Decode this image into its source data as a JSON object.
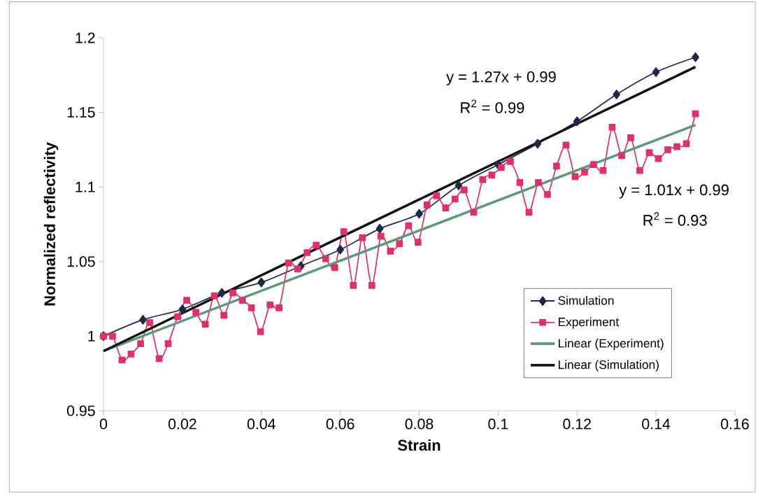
{
  "chart_data": {
    "type": "line",
    "xlabel": "Strain",
    "ylabel": "Normalized reflectivity",
    "xlim": [
      0,
      0.16
    ],
    "ylim": [
      0.95,
      1.2
    ],
    "xticks": [
      0,
      0.02,
      0.04,
      0.06,
      0.08,
      0.1,
      0.12,
      0.14,
      0.16
    ],
    "yticks": [
      0.95,
      1,
      1.05,
      1.1,
      1.15,
      1.2
    ],
    "legend": "bottom right",
    "series": [
      {
        "name": "Simulation",
        "color": "#1c2a4a",
        "marker": "diamond",
        "x": [
          0,
          0.01,
          0.02,
          0.03,
          0.04,
          0.05,
          0.06,
          0.07,
          0.08,
          0.09,
          0.1,
          0.11,
          0.12,
          0.13,
          0.14,
          0.15
        ],
        "values": [
          1.0,
          1.011,
          1.018,
          1.029,
          1.036,
          1.047,
          1.058,
          1.072,
          1.082,
          1.101,
          1.115,
          1.129,
          1.144,
          1.162,
          1.177,
          1.187
        ]
      },
      {
        "name": "Experiment",
        "color": "#e0306a",
        "marker": "square",
        "x": [
          0,
          0.0023,
          0.0047,
          0.007,
          0.0094,
          0.0117,
          0.0141,
          0.0164,
          0.0188,
          0.0211,
          0.0234,
          0.0258,
          0.0281,
          0.0305,
          0.0328,
          0.0352,
          0.0375,
          0.0398,
          0.0422,
          0.0445,
          0.0469,
          0.0492,
          0.0516,
          0.0539,
          0.0563,
          0.0586,
          0.0609,
          0.0633,
          0.0656,
          0.068,
          0.0703,
          0.0727,
          0.075,
          0.0773,
          0.0797,
          0.082,
          0.0844,
          0.0867,
          0.0891,
          0.0914,
          0.0938,
          0.0961,
          0.0984,
          0.1008,
          0.1031,
          0.1055,
          0.1078,
          0.1102,
          0.1125,
          0.1148,
          0.1172,
          0.1195,
          0.1219,
          0.1242,
          0.1266,
          0.1289,
          0.1313,
          0.1336,
          0.1359,
          0.1383,
          0.1406,
          0.143,
          0.1453,
          0.1477,
          0.15
        ],
        "values": [
          1.0,
          1.0,
          0.984,
          0.988,
          0.995,
          1.009,
          0.985,
          0.995,
          1.013,
          1.024,
          1.016,
          1.008,
          1.027,
          1.014,
          1.029,
          1.024,
          1.019,
          1.003,
          1.021,
          1.019,
          1.049,
          1.045,
          1.056,
          1.061,
          1.052,
          1.046,
          1.07,
          1.034,
          1.066,
          1.034,
          1.067,
          1.057,
          1.062,
          1.074,
          1.063,
          1.088,
          1.094,
          1.086,
          1.092,
          1.098,
          1.083,
          1.105,
          1.108,
          1.113,
          1.117,
          1.103,
          1.083,
          1.103,
          1.095,
          1.114,
          1.128,
          1.107,
          1.11,
          1.115,
          1.111,
          1.14,
          1.121,
          1.133,
          1.111,
          1.123,
          1.119,
          1.125,
          1.127,
          1.129,
          1.149
        ]
      },
      {
        "name": "Linear (Experiment)",
        "color": "#5a9a78",
        "marker": "none",
        "x": [
          0,
          0.15
        ],
        "values": [
          0.99,
          1.1415
        ]
      },
      {
        "name": "Linear (Simulation)",
        "color": "#111111",
        "marker": "none",
        "x": [
          0,
          0.15
        ],
        "values": [
          0.99,
          1.1805
        ]
      }
    ],
    "annotations": [
      "y = 1.27x + 0.99",
      "R$^{2}$ = 0.99",
      "y = 1.01x + 0.99",
      "R$^{2}$ = 0.93"
    ]
  }
}
